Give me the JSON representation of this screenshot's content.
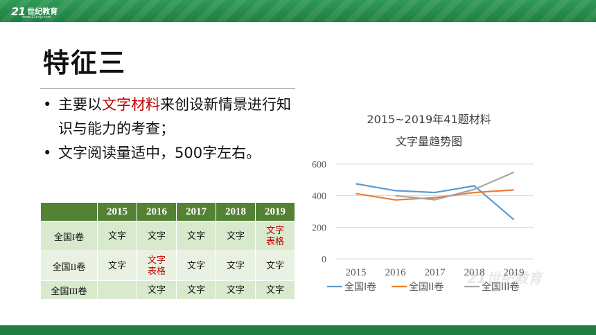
{
  "header": {
    "logo_mark": "21",
    "logo_text": "世纪教育",
    "logo_url": "www.21cnjy.com"
  },
  "slide": {
    "title": "特征三",
    "bullets": [
      {
        "pre": "主要以",
        "highlight": "文字材料",
        "post": "来创设新情景进行知识与能力的考查；"
      },
      {
        "text": "文字阅读量适中，500字左右。"
      }
    ]
  },
  "table": {
    "columns": [
      "",
      "2015",
      "2016",
      "2017",
      "2018",
      "2019"
    ],
    "rows": [
      {
        "label": "全国I卷",
        "cells": [
          "文字",
          "文字",
          "文字",
          "文字",
          "文字表格"
        ]
      },
      {
        "label": "全国II卷",
        "cells": [
          "文字",
          "文字表格",
          "文字",
          "文字",
          "文字"
        ]
      },
      {
        "label": "全国III卷",
        "cells": [
          "",
          "文字",
          "文字",
          "文字",
          "文字"
        ]
      }
    ],
    "highlight_color": "#c00000"
  },
  "chart_data": {
    "type": "line",
    "title_lines": [
      "2015~2019年41题材料",
      "文字量趋势图"
    ],
    "categories": [
      "2015",
      "2016",
      "2017",
      "2018",
      "2019"
    ],
    "ylim": [
      0,
      600
    ],
    "yticks": [
      0,
      200,
      400,
      600
    ],
    "grid": true,
    "legend_position": "bottom",
    "series": [
      {
        "name": "全国I卷",
        "color": "#5b9bd5",
        "values": [
          475,
          432,
          420,
          462,
          248
        ]
      },
      {
        "name": "全国II卷",
        "color": "#ed7d31",
        "values": [
          413,
          373,
          387,
          420,
          436
        ]
      },
      {
        "name": "全国III卷",
        "color": "#a5a5a5",
        "values": [
          null,
          400,
          374,
          440,
          548
        ]
      }
    ]
  },
  "colors": {
    "brand_green": "#1f7f43",
    "table_header": "#548235",
    "accent_red": "#c00000"
  }
}
